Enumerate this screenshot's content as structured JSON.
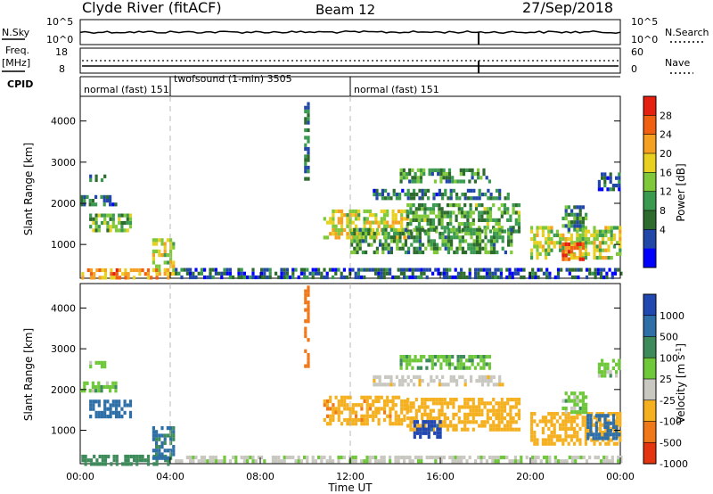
{
  "header": {
    "station": "Clyde River (fitACF)",
    "beam": "Beam 12",
    "date": "27/Sep/2018"
  },
  "top_panels": {
    "nsky_label": "N.Sky",
    "nsearch_label": "N.Search",
    "noise_ticks_left": [
      "10^5",
      "10^0"
    ],
    "noise_ticks_right": [
      "10^5",
      "10^0"
    ],
    "freq_label_1": "Freq.",
    "freq_label_2": "[MHz]",
    "freq_ticks": [
      "18",
      "8"
    ],
    "nave_label": "Nave",
    "nave_ticks": [
      "60",
      "0"
    ],
    "cpid_label": "CPID",
    "cpid_segments": [
      {
        "label": "normal (fast)",
        "id": "151",
        "start": 0,
        "end": 4
      },
      {
        "label": "twofsound (1-min)",
        "id": "3505",
        "start": 4,
        "end": 12
      },
      {
        "label": "normal (fast)",
        "id": "151",
        "start": 12,
        "end": 24
      }
    ]
  },
  "chart_data": [
    {
      "type": "heatmap",
      "title": "",
      "xlabel": "",
      "ylabel": "Slant Range [km]",
      "x_ticks": [
        "00:00",
        "04:00",
        "08:00",
        "12:00",
        "16:00",
        "20:00",
        "00:00"
      ],
      "y_ticks": [
        "1000",
        "2000",
        "3000",
        "4000"
      ],
      "xlim": [
        0,
        24
      ],
      "ylim": [
        180,
        4600
      ],
      "colorbar": {
        "label": "Power [dB]",
        "ticks": [
          "28",
          "24",
          "20",
          "16",
          "12",
          "8",
          "4"
        ],
        "range": [
          0,
          30
        ],
        "colors": [
          "#0000ff",
          "#2147a8",
          "#2e6b2e",
          "#3a9a50",
          "#7fc83a",
          "#e8d020",
          "#f5a020",
          "#f06010",
          "#e52010"
        ]
      },
      "echo_regions": [
        {
          "t0": 0.05,
          "t1": 3.9,
          "r0": 200,
          "r1": 420,
          "value": 22
        },
        {
          "t0": 3.2,
          "t1": 4.2,
          "r0": 300,
          "r1": 1150,
          "value": 18
        },
        {
          "t0": 0.4,
          "t1": 2.2,
          "r0": 1300,
          "r1": 1750,
          "value": 13
        },
        {
          "t0": 0.0,
          "t1": 1.6,
          "r0": 1950,
          "r1": 2200,
          "value": 7
        },
        {
          "t0": 0.4,
          "t1": 1.1,
          "r0": 2550,
          "r1": 2700,
          "value": 7
        },
        {
          "t0": 10.8,
          "t1": 14.5,
          "r0": 1150,
          "r1": 1850,
          "value": 18
        },
        {
          "t0": 14.5,
          "t1": 19.5,
          "r0": 1350,
          "r1": 2000,
          "value": 12
        },
        {
          "t0": 12.0,
          "t1": 19.2,
          "r0": 850,
          "r1": 1400,
          "value": 11
        },
        {
          "t0": 13.0,
          "t1": 19.0,
          "r0": 2100,
          "r1": 2350,
          "value": 8
        },
        {
          "t0": 14.2,
          "t1": 18.2,
          "r0": 2500,
          "r1": 2850,
          "value": 10
        },
        {
          "t0": 20.0,
          "t1": 24.0,
          "r0": 650,
          "r1": 1450,
          "value": 16
        },
        {
          "t0": 21.4,
          "t1": 22.4,
          "r0": 650,
          "r1": 1050,
          "value": 26
        },
        {
          "t0": 21.4,
          "t1": 22.5,
          "r0": 1400,
          "r1": 1950,
          "value": 10
        },
        {
          "t0": 23.0,
          "t1": 24.0,
          "r0": 2350,
          "r1": 2750,
          "value": 7
        },
        {
          "t0": 4.2,
          "t1": 24.0,
          "r0": 200,
          "r1": 430,
          "value": 6
        },
        {
          "t0": 9.95,
          "t1": 10.1,
          "r0": 2600,
          "r1": 4550,
          "value": 8
        }
      ]
    },
    {
      "type": "heatmap",
      "title": "",
      "xlabel": "Time UT",
      "ylabel": "Slant Range [km]",
      "x_ticks": [
        "00:00",
        "04:00",
        "08:00",
        "12:00",
        "16:00",
        "20:00",
        "00:00"
      ],
      "y_ticks": [
        "1000",
        "2000",
        "3000",
        "4000"
      ],
      "xlim": [
        0,
        24
      ],
      "ylim": [
        180,
        4600
      ],
      "colorbar": {
        "label": "Velocity [m s^-1]",
        "ticks": [
          "1000",
          "500",
          "100",
          "25",
          "-25",
          "-100",
          "-500",
          "-1000"
        ],
        "colors": [
          "#2147b0",
          "#2e6fa8",
          "#3d8a5a",
          "#6ec83a",
          "#c8c8c0",
          "#f5b020",
          "#f07818",
          "#e53510"
        ]
      },
      "echo_regions": [
        {
          "t0": 0.05,
          "t1": 3.9,
          "r0": 200,
          "r1": 400,
          "value": 60
        },
        {
          "t0": 3.2,
          "t1": 4.2,
          "r0": 300,
          "r1": 1100,
          "value": 120
        },
        {
          "t0": 0.4,
          "t1": 2.2,
          "r0": 1300,
          "r1": 1750,
          "value": 300
        },
        {
          "t0": 0.0,
          "t1": 1.6,
          "r0": 1950,
          "r1": 2200,
          "value": 0
        },
        {
          "t0": 0.4,
          "t1": 1.1,
          "r0": 2550,
          "r1": 2700,
          "value": 0
        },
        {
          "t0": 10.8,
          "t1": 14.5,
          "r0": 1150,
          "r1": 1850,
          "value": -400
        },
        {
          "t0": 14.5,
          "t1": 19.5,
          "r0": 1000,
          "r1": 1800,
          "value": -300
        },
        {
          "t0": 14.8,
          "t1": 16.0,
          "r0": 850,
          "r1": 1250,
          "value": 700
        },
        {
          "t0": 13.0,
          "t1": 19.0,
          "r0": 2100,
          "r1": 2350,
          "value": -80
        },
        {
          "t0": 14.2,
          "t1": 18.2,
          "r0": 2500,
          "r1": 2850,
          "value": 10
        },
        {
          "t0": 20.0,
          "t1": 24.0,
          "r0": 650,
          "r1": 1450,
          "value": -250
        },
        {
          "t0": 22.5,
          "t1": 24.0,
          "r0": 800,
          "r1": 1400,
          "value": 150
        },
        {
          "t0": 21.4,
          "t1": 22.5,
          "r0": 1400,
          "r1": 1950,
          "value": 0
        },
        {
          "t0": 23.0,
          "t1": 24.0,
          "r0": 2350,
          "r1": 2750,
          "value": 0
        },
        {
          "t0": 4.2,
          "t1": 24.0,
          "r0": 200,
          "r1": 380,
          "value": -40
        },
        {
          "t0": 9.95,
          "t1": 10.1,
          "r0": 2600,
          "r1": 4550,
          "value": -700
        }
      ]
    }
  ]
}
